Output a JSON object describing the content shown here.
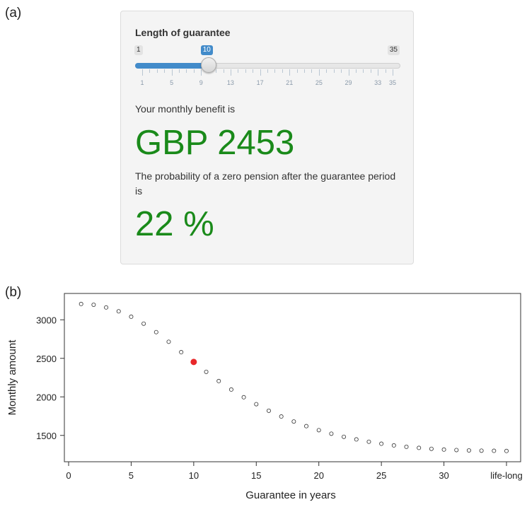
{
  "panel_a_label": "(a)",
  "panel_b_label": "(b)",
  "slider": {
    "title": "Length of guarantee",
    "min": 1,
    "max": 35,
    "value": 10,
    "min_label": "1",
    "max_label": "35",
    "value_label": "10",
    "tick_labels": [
      "1",
      "5",
      "9",
      "13",
      "17",
      "21",
      "25",
      "29",
      "33",
      "35"
    ]
  },
  "benefit": {
    "label": "Your monthly benefit is",
    "value": "GBP 2453"
  },
  "probability": {
    "label": "The probability of a zero pension after the guarantee period is",
    "value": "22 %"
  },
  "colors": {
    "accent": "#428bca",
    "result_green": "#1a8a1a",
    "highlight_point": "#e8272a"
  },
  "chart_data": {
    "type": "scatter",
    "title": "",
    "xlabel": "Guarantee in years",
    "ylabel": "Monthly amount",
    "xlim": [
      0,
      35
    ],
    "ylim": [
      1250,
      3250
    ],
    "xticks": [
      0,
      5,
      10,
      15,
      20,
      25,
      30,
      35
    ],
    "xtick_labels": [
      "0",
      "5",
      "10",
      "15",
      "20",
      "25",
      "30",
      "life-long"
    ],
    "yticks": [
      1500,
      2000,
      2500,
      3000
    ],
    "ytick_labels": [
      "1500",
      "2000",
      "2500",
      "3000"
    ],
    "x": [
      1,
      2,
      3,
      4,
      5,
      6,
      7,
      8,
      9,
      10,
      11,
      12,
      13,
      14,
      15,
      16,
      17,
      18,
      19,
      20,
      21,
      22,
      23,
      24,
      25,
      26,
      27,
      28,
      29,
      30,
      31,
      32,
      33,
      34,
      35
    ],
    "y": [
      3205,
      3195,
      3160,
      3110,
      3040,
      2950,
      2840,
      2715,
      2580,
      2453,
      2325,
      2205,
      2095,
      1995,
      1905,
      1820,
      1745,
      1680,
      1620,
      1568,
      1522,
      1482,
      1448,
      1418,
      1392,
      1370,
      1352,
      1338,
      1326,
      1316,
      1310,
      1305,
      1302,
      1300,
      1298
    ],
    "highlight": {
      "x": 10,
      "y": 2453
    },
    "grid": false
  }
}
